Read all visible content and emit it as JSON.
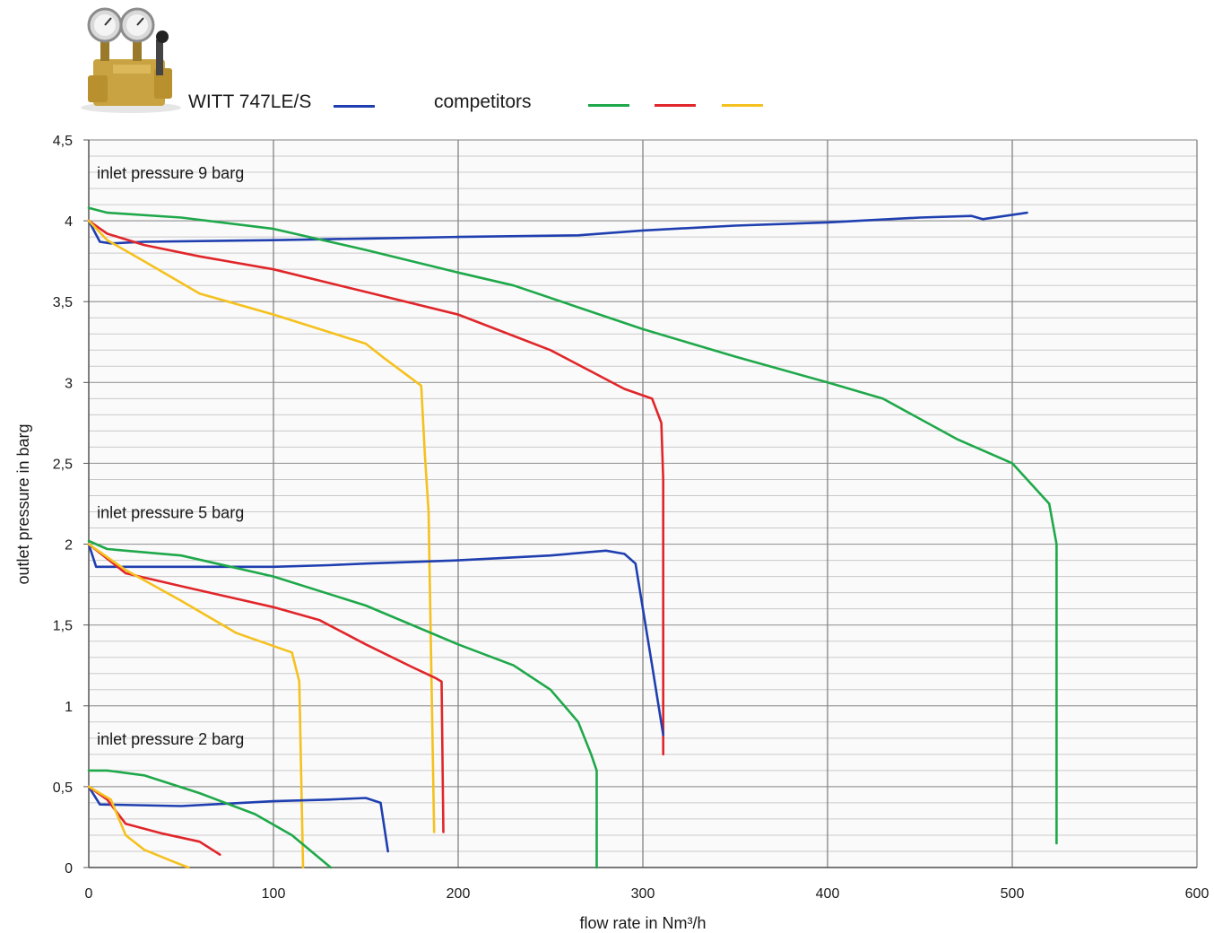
{
  "legend": {
    "product_label": "WITT 747LE/S",
    "competitors_label": "competitors",
    "colors": {
      "product": "#1f3fb0",
      "competitor_green": "#1fa84a",
      "competitor_red": "#e0262a",
      "competitor_yellow": "#f5c11e"
    }
  },
  "product_image_icon": "gas-pressure-regulator-with-two-gauges",
  "chart_data": {
    "type": "line",
    "xlabel": "flow rate in Nm³/h",
    "ylabel": "outlet pressure in barg",
    "xlim": [
      0,
      600
    ],
    "ylim": [
      0,
      4.5
    ],
    "x_ticks": [
      "0",
      "100",
      "200",
      "300",
      "400",
      "500",
      "600"
    ],
    "y_ticks": [
      "0",
      "0,5",
      "1",
      "1,5",
      "2",
      "2,5",
      "3",
      "3,5",
      "4",
      "4,5"
    ],
    "grid": true,
    "annotations": [
      {
        "text": "inlet pressure 9 barg",
        "x": 2,
        "y": 4.3
      },
      {
        "text": "inlet pressure 5 barg",
        "x": 2,
        "y": 2.2
      },
      {
        "text": "inlet pressure 2 barg",
        "x": 2,
        "y": 0.8
      }
    ],
    "series": [
      {
        "group": "9 barg",
        "color": "#1f3fb0",
        "points": [
          [
            0,
            4.0
          ],
          [
            6,
            3.87
          ],
          [
            12,
            3.86
          ],
          [
            30,
            3.87
          ],
          [
            100,
            3.88
          ],
          [
            150,
            3.89
          ],
          [
            200,
            3.9
          ],
          [
            265,
            3.91
          ],
          [
            300,
            3.94
          ],
          [
            350,
            3.97
          ],
          [
            400,
            3.99
          ],
          [
            450,
            4.02
          ],
          [
            478,
            4.03
          ],
          [
            484,
            4.01
          ],
          [
            508,
            4.05
          ]
        ]
      },
      {
        "group": "9 barg",
        "color": "#1fa84a",
        "points": [
          [
            0,
            4.08
          ],
          [
            10,
            4.05
          ],
          [
            50,
            4.02
          ],
          [
            100,
            3.95
          ],
          [
            150,
            3.82
          ],
          [
            200,
            3.68
          ],
          [
            230,
            3.6
          ],
          [
            300,
            3.33
          ],
          [
            350,
            3.16
          ],
          [
            400,
            3.0
          ],
          [
            430,
            2.9
          ],
          [
            470,
            2.65
          ],
          [
            500,
            2.5
          ],
          [
            520,
            2.25
          ],
          [
            524,
            2.0
          ],
          [
            524,
            0.15
          ]
        ]
      },
      {
        "group": "9 barg",
        "color": "#e0262a",
        "points": [
          [
            0,
            4.0
          ],
          [
            10,
            3.92
          ],
          [
            30,
            3.85
          ],
          [
            60,
            3.78
          ],
          [
            100,
            3.7
          ],
          [
            150,
            3.56
          ],
          [
            200,
            3.42
          ],
          [
            250,
            3.2
          ],
          [
            290,
            2.96
          ],
          [
            305,
            2.9
          ],
          [
            310,
            2.75
          ],
          [
            311,
            2.4
          ],
          [
            311,
            0.7
          ]
        ]
      },
      {
        "group": "9 barg",
        "color": "#f5c11e",
        "points": [
          [
            0,
            4.0
          ],
          [
            10,
            3.88
          ],
          [
            30,
            3.75
          ],
          [
            60,
            3.55
          ],
          [
            100,
            3.42
          ],
          [
            150,
            3.24
          ],
          [
            160,
            3.15
          ],
          [
            180,
            2.98
          ],
          [
            182,
            2.55
          ],
          [
            184,
            2.2
          ],
          [
            187,
            0.22
          ]
        ]
      },
      {
        "group": "5 barg",
        "color": "#1f3fb0",
        "points": [
          [
            0,
            2.0
          ],
          [
            4,
            1.86
          ],
          [
            100,
            1.86
          ],
          [
            130,
            1.87
          ],
          [
            150,
            1.88
          ],
          [
            200,
            1.9
          ],
          [
            250,
            1.93
          ],
          [
            280,
            1.96
          ],
          [
            290,
            1.94
          ],
          [
            296,
            1.88
          ],
          [
            300,
            1.6
          ],
          [
            305,
            1.25
          ],
          [
            311,
            0.82
          ]
        ]
      },
      {
        "group": "5 barg",
        "color": "#1fa84a",
        "points": [
          [
            0,
            2.02
          ],
          [
            10,
            1.97
          ],
          [
            50,
            1.93
          ],
          [
            100,
            1.8
          ],
          [
            150,
            1.62
          ],
          [
            200,
            1.38
          ],
          [
            230,
            1.25
          ],
          [
            250,
            1.1
          ],
          [
            265,
            0.9
          ],
          [
            272,
            0.7
          ],
          [
            275,
            0.6
          ],
          [
            275,
            0.0
          ]
        ]
      },
      {
        "group": "5 barg",
        "color": "#e0262a",
        "points": [
          [
            0,
            2.0
          ],
          [
            20,
            1.82
          ],
          [
            50,
            1.74
          ],
          [
            100,
            1.61
          ],
          [
            125,
            1.53
          ],
          [
            150,
            1.38
          ],
          [
            175,
            1.24
          ],
          [
            188,
            1.17
          ],
          [
            191,
            1.15
          ],
          [
            192,
            0.22
          ]
        ]
      },
      {
        "group": "5 barg",
        "color": "#f5c11e",
        "points": [
          [
            0,
            2.0
          ],
          [
            20,
            1.84
          ],
          [
            50,
            1.65
          ],
          [
            80,
            1.45
          ],
          [
            110,
            1.33
          ],
          [
            114,
            1.15
          ],
          [
            116,
            0.0
          ]
        ]
      },
      {
        "group": "2 barg",
        "color": "#1f3fb0",
        "points": [
          [
            0,
            0.5
          ],
          [
            6,
            0.39
          ],
          [
            50,
            0.38
          ],
          [
            100,
            0.41
          ],
          [
            130,
            0.42
          ],
          [
            150,
            0.43
          ],
          [
            158,
            0.4
          ],
          [
            162,
            0.1
          ]
        ]
      },
      {
        "group": "2 barg",
        "color": "#1fa84a",
        "points": [
          [
            0,
            0.6
          ],
          [
            10,
            0.6
          ],
          [
            30,
            0.57
          ],
          [
            60,
            0.46
          ],
          [
            90,
            0.33
          ],
          [
            110,
            0.2
          ],
          [
            131,
            0.0
          ]
        ]
      },
      {
        "group": "2 barg",
        "color": "#e0262a",
        "points": [
          [
            0,
            0.5
          ],
          [
            10,
            0.42
          ],
          [
            20,
            0.27
          ],
          [
            40,
            0.21
          ],
          [
            60,
            0.16
          ],
          [
            71,
            0.08
          ]
        ]
      },
      {
        "group": "2 barg",
        "color": "#f5c11e",
        "points": [
          [
            0,
            0.5
          ],
          [
            12,
            0.42
          ],
          [
            20,
            0.2
          ],
          [
            30,
            0.11
          ],
          [
            45,
            0.04
          ],
          [
            54,
            0.0
          ]
        ]
      }
    ]
  }
}
